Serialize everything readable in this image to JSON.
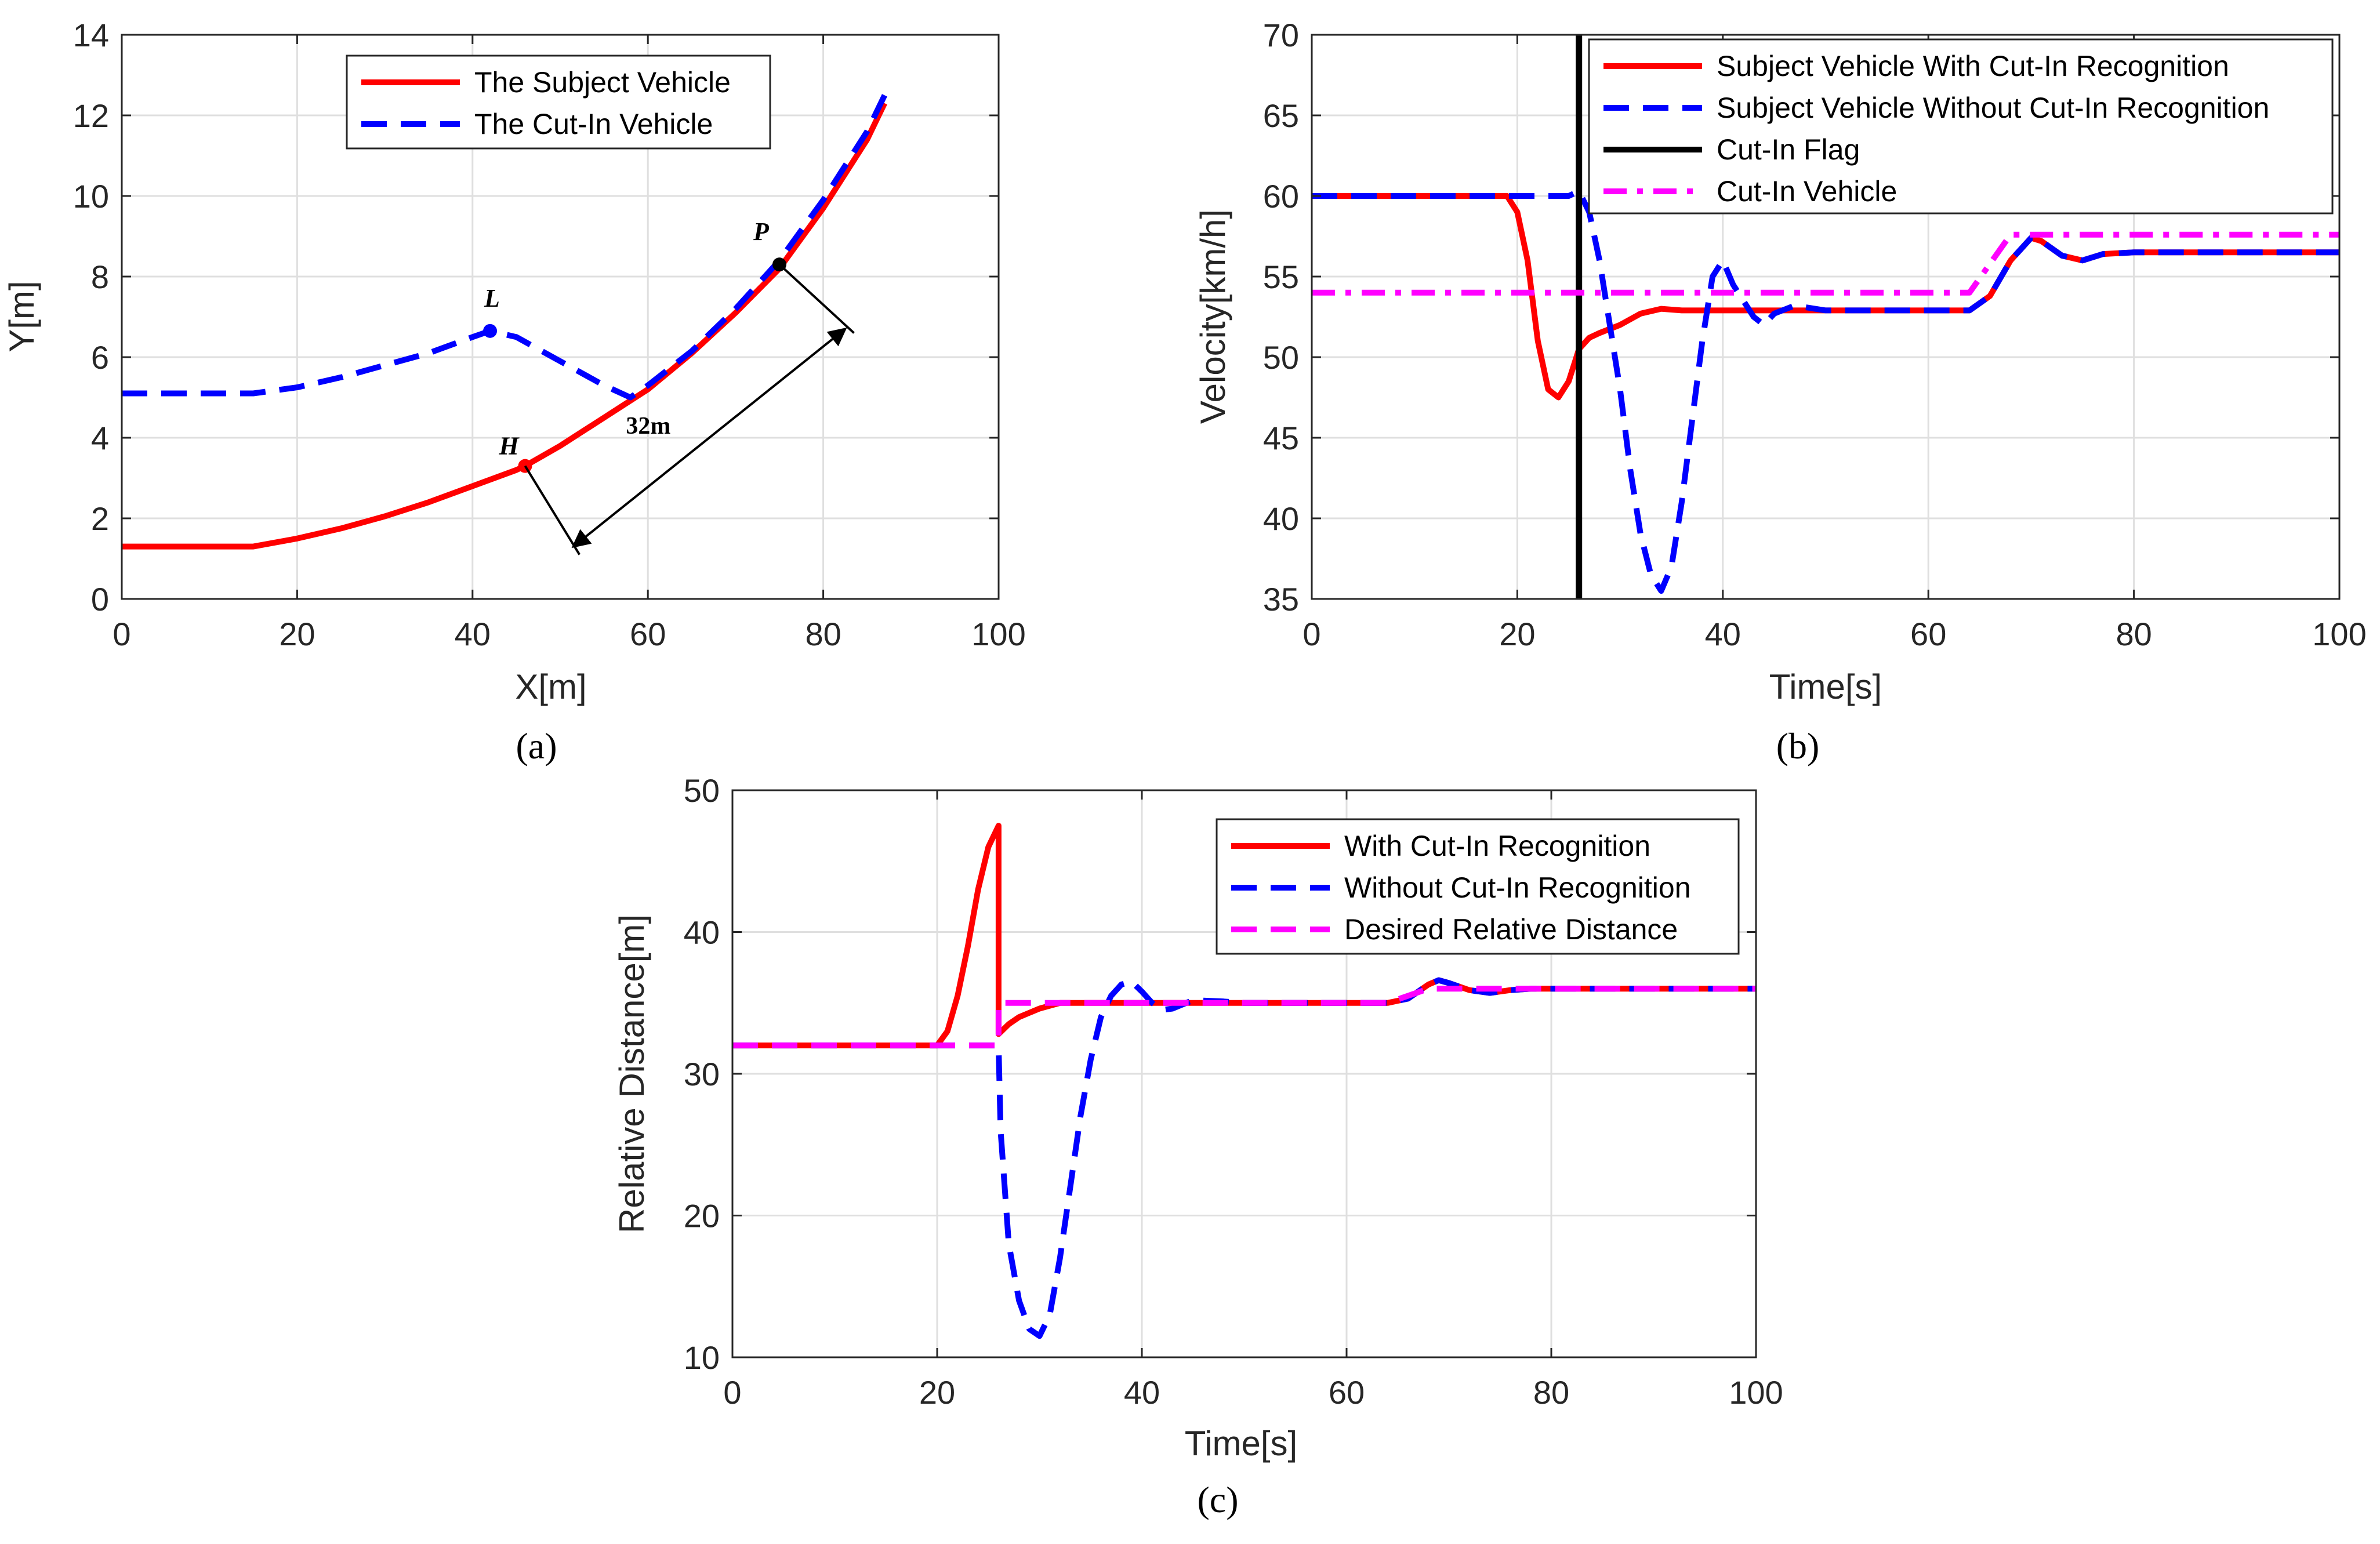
{
  "chart_data": [
    {
      "type": "line",
      "caption": "(a)",
      "xlabel": "X[m]",
      "ylabel": "Y[m]",
      "xlim": [
        0,
        100
      ],
      "ylim": [
        0,
        14
      ],
      "xticks": [
        0,
        20,
        40,
        60,
        80,
        100
      ],
      "yticks": [
        0,
        2,
        4,
        6,
        8,
        10,
        12,
        14
      ],
      "grid": true,
      "legend_position": "top-center",
      "series": [
        {
          "name": "The Subject Vehicle",
          "color": "#ff0000",
          "style": "solid",
          "x": [
            0,
            15,
            20,
            25,
            30,
            35,
            40,
            45,
            46,
            50,
            55,
            60,
            65,
            70,
            75,
            80,
            85,
            87
          ],
          "y": [
            1.3,
            1.3,
            1.5,
            1.75,
            2.05,
            2.4,
            2.8,
            3.2,
            3.3,
            3.8,
            4.5,
            5.2,
            6.1,
            7.1,
            8.2,
            9.7,
            11.4,
            12.3
          ]
        },
        {
          "name": "The Cut-In Vehicle",
          "color": "#0000ff",
          "style": "dashed",
          "x": [
            0,
            15,
            20,
            25,
            30,
            35,
            40,
            42,
            45,
            50,
            55,
            58,
            60,
            65,
            70,
            75,
            80,
            85,
            87
          ],
          "y": [
            5.1,
            5.1,
            5.25,
            5.5,
            5.8,
            6.1,
            6.5,
            6.65,
            6.5,
            5.9,
            5.3,
            5.0,
            5.3,
            6.15,
            7.2,
            8.4,
            9.9,
            11.6,
            12.5
          ]
        }
      ],
      "points": [
        {
          "label": "L",
          "x": 42,
          "y": 6.65,
          "color": "#0000ff"
        },
        {
          "label": "H",
          "x": 46,
          "y": 3.3,
          "color": "#ff0000"
        },
        {
          "label": "P",
          "x": 75,
          "y": 8.3,
          "color": "#000000"
        }
      ],
      "annotation": "32m"
    },
    {
      "type": "line",
      "caption": "(b)",
      "xlabel": "Time[s]",
      "ylabel": "Velocity[km/h]",
      "xlim": [
        0,
        100
      ],
      "ylim": [
        35,
        70
      ],
      "xticks": [
        0,
        20,
        40,
        60,
        80,
        100
      ],
      "yticks": [
        35,
        40,
        45,
        50,
        55,
        60,
        65,
        70
      ],
      "grid": true,
      "legend_position": "top-right",
      "series": [
        {
          "name": "Subject Vehicle With Cut-In Recognition",
          "color": "#ff0000",
          "style": "solid",
          "x": [
            0,
            19,
            20,
            21,
            22,
            23,
            24,
            25,
            26,
            27,
            28,
            30,
            32,
            34,
            36,
            40,
            50,
            64,
            66,
            68,
            70,
            71,
            73,
            75,
            77,
            80,
            100
          ],
          "y": [
            60,
            60,
            59,
            56,
            51,
            48,
            47.5,
            48.5,
            50.5,
            51.2,
            51.5,
            52.0,
            52.7,
            53.0,
            52.9,
            52.9,
            52.9,
            52.9,
            53.8,
            56.0,
            57.4,
            57.2,
            56.3,
            56.0,
            56.4,
            56.5,
            56.5
          ]
        },
        {
          "name": "Subject Vehicle Without Cut-In Recognition",
          "color": "#0000ff",
          "style": "dashed",
          "x": [
            0,
            25,
            26,
            27,
            28,
            29,
            30,
            31,
            32,
            33,
            34,
            35,
            36,
            37,
            38,
            39,
            40,
            41,
            42,
            43,
            44,
            45,
            47,
            50,
            64,
            66,
            68,
            70,
            71,
            73,
            75,
            77,
            80,
            100
          ],
          "y": [
            60,
            60,
            60.3,
            59,
            56,
            52,
            48,
            43,
            39,
            36.5,
            35.5,
            37,
            41,
            46,
            51,
            55,
            56,
            54.5,
            53.5,
            52.5,
            52.0,
            52.7,
            53.2,
            52.9,
            52.9,
            53.8,
            56.0,
            57.4,
            57.2,
            56.3,
            56.0,
            56.4,
            56.5,
            56.5
          ]
        },
        {
          "name": "Cut-In Flag",
          "color": "#000000",
          "style": "solid",
          "x": [
            26,
            26
          ],
          "y": [
            35,
            70
          ]
        },
        {
          "name": "Cut-In Vehicle",
          "color": "#ff00ff",
          "style": "dashdot",
          "x": [
            0,
            64,
            68,
            100
          ],
          "y": [
            54,
            54,
            57.6,
            57.6
          ]
        }
      ]
    },
    {
      "type": "line",
      "caption": "(c)",
      "xlabel": "Time[s]",
      "ylabel": "Relative Distance[m]",
      "xlim": [
        0,
        100
      ],
      "ylim": [
        10,
        50
      ],
      "xticks": [
        0,
        20,
        40,
        60,
        80,
        100
      ],
      "yticks": [
        10,
        20,
        30,
        40,
        50
      ],
      "grid": true,
      "legend_position": "top-right",
      "series": [
        {
          "name": "With Cut-In Recognition",
          "color": "#ff0000",
          "style": "solid",
          "x": [
            0,
            20,
            21,
            22,
            23,
            24,
            25,
            26,
            26,
            27,
            28,
            30,
            32,
            40,
            64,
            66,
            68,
            69,
            70,
            72,
            74,
            76,
            78,
            80,
            100
          ],
          "y": [
            32,
            32,
            33,
            35.5,
            39,
            43,
            46,
            47.5,
            32.8,
            33.5,
            34.0,
            34.6,
            35.0,
            35.0,
            35.0,
            35.3,
            36.3,
            36.6,
            36.4,
            35.9,
            35.7,
            35.9,
            36.0,
            36.0,
            36.0
          ]
        },
        {
          "name": "Without Cut-In Recognition",
          "color": "#0000ff",
          "style": "dashed",
          "x": [
            0,
            25,
            26,
            26.2,
            27,
            28,
            29,
            30,
            31,
            32,
            33,
            34,
            35,
            36,
            37,
            38,
            39,
            40,
            41,
            42,
            43,
            45,
            48,
            50,
            64,
            66,
            68,
            69,
            70,
            72,
            74,
            76,
            78,
            80,
            100
          ],
          "y": [
            32,
            32,
            32,
            26,
            18,
            14,
            12,
            11.5,
            13,
            17,
            22,
            27,
            31,
            34,
            35.5,
            36.3,
            36.5,
            35.8,
            35.0,
            34.5,
            34.6,
            35.2,
            35.1,
            35.0,
            35.0,
            35.3,
            36.3,
            36.6,
            36.4,
            35.9,
            35.7,
            35.9,
            36.0,
            36.0,
            36.0
          ]
        },
        {
          "name": "Desired Relative Distance",
          "color": "#ff00ff",
          "style": "dashed",
          "x": [
            0,
            23,
            26,
            26,
            64,
            68,
            100
          ],
          "y": [
            32,
            32,
            32,
            35,
            35,
            36,
            36
          ]
        }
      ]
    }
  ]
}
